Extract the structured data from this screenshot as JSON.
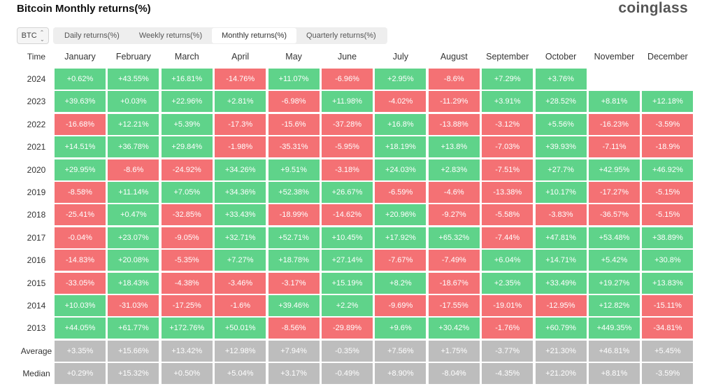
{
  "header": {
    "title": "Bitcoin Monthly returns(%)",
    "brand": "coinglass"
  },
  "controls": {
    "coin": "BTC",
    "tabs": [
      "Daily returns(%)",
      "Weekly returns(%)",
      "Monthly returns(%)",
      "Quarterly returns(%)"
    ],
    "active_tab": 2
  },
  "colors": {
    "positive": "#5fd38a",
    "negative": "#f47174",
    "summary": "#bdbdbd"
  },
  "chart_data": {
    "type": "table",
    "row_header": "Time",
    "columns": [
      "January",
      "February",
      "March",
      "April",
      "May",
      "June",
      "July",
      "August",
      "September",
      "October",
      "November",
      "December"
    ],
    "rows": [
      {
        "label": "2024",
        "values": [
          "+0.62%",
          "+43.55%",
          "+16.81%",
          "-14.76%",
          "+11.07%",
          "-6.96%",
          "+2.95%",
          "-8.6%",
          "+7.29%",
          "+3.76%",
          null,
          null
        ]
      },
      {
        "label": "2023",
        "values": [
          "+39.63%",
          "+0.03%",
          "+22.96%",
          "+2.81%",
          "-6.98%",
          "+11.98%",
          "-4.02%",
          "-11.29%",
          "+3.91%",
          "+28.52%",
          "+8.81%",
          "+12.18%"
        ]
      },
      {
        "label": "2022",
        "values": [
          "-16.68%",
          "+12.21%",
          "+5.39%",
          "-17.3%",
          "-15.6%",
          "-37.28%",
          "+16.8%",
          "-13.88%",
          "-3.12%",
          "+5.56%",
          "-16.23%",
          "-3.59%"
        ]
      },
      {
        "label": "2021",
        "values": [
          "+14.51%",
          "+36.78%",
          "+29.84%",
          "-1.98%",
          "-35.31%",
          "-5.95%",
          "+18.19%",
          "+13.8%",
          "-7.03%",
          "+39.93%",
          "-7.11%",
          "-18.9%"
        ]
      },
      {
        "label": "2020",
        "values": [
          "+29.95%",
          "-8.6%",
          "-24.92%",
          "+34.26%",
          "+9.51%",
          "-3.18%",
          "+24.03%",
          "+2.83%",
          "-7.51%",
          "+27.7%",
          "+42.95%",
          "+46.92%"
        ]
      },
      {
        "label": "2019",
        "values": [
          "-8.58%",
          "+11.14%",
          "+7.05%",
          "+34.36%",
          "+52.38%",
          "+26.67%",
          "-6.59%",
          "-4.6%",
          "-13.38%",
          "+10.17%",
          "-17.27%",
          "-5.15%"
        ]
      },
      {
        "label": "2018",
        "values": [
          "-25.41%",
          "+0.47%",
          "-32.85%",
          "+33.43%",
          "-18.99%",
          "-14.62%",
          "+20.96%",
          "-9.27%",
          "-5.58%",
          "-3.83%",
          "-36.57%",
          "-5.15%"
        ]
      },
      {
        "label": "2017",
        "values": [
          "-0.04%",
          "+23.07%",
          "-9.05%",
          "+32.71%",
          "+52.71%",
          "+10.45%",
          "+17.92%",
          "+65.32%",
          "-7.44%",
          "+47.81%",
          "+53.48%",
          "+38.89%"
        ]
      },
      {
        "label": "2016",
        "values": [
          "-14.83%",
          "+20.08%",
          "-5.35%",
          "+7.27%",
          "+18.78%",
          "+27.14%",
          "-7.67%",
          "-7.49%",
          "+6.04%",
          "+14.71%",
          "+5.42%",
          "+30.8%"
        ]
      },
      {
        "label": "2015",
        "values": [
          "-33.05%",
          "+18.43%",
          "-4.38%",
          "-3.46%",
          "-3.17%",
          "+15.19%",
          "+8.2%",
          "-18.67%",
          "+2.35%",
          "+33.49%",
          "+19.27%",
          "+13.83%"
        ]
      },
      {
        "label": "2014",
        "values": [
          "+10.03%",
          "-31.03%",
          "-17.25%",
          "-1.6%",
          "+39.46%",
          "+2.2%",
          "-9.69%",
          "-17.55%",
          "-19.01%",
          "-12.95%",
          "+12.82%",
          "-15.11%"
        ]
      },
      {
        "label": "2013",
        "values": [
          "+44.05%",
          "+61.77%",
          "+172.76%",
          "+50.01%",
          "-8.56%",
          "-29.89%",
          "+9.6%",
          "+30.42%",
          "-1.76%",
          "+60.79%",
          "+449.35%",
          "-34.81%"
        ]
      }
    ],
    "summary_rows": [
      {
        "label": "Average",
        "values": [
          "+3.35%",
          "+15.66%",
          "+13.42%",
          "+12.98%",
          "+7.94%",
          "-0.35%",
          "+7.56%",
          "+1.75%",
          "-3.77%",
          "+21.30%",
          "+46.81%",
          "+5.45%"
        ]
      },
      {
        "label": "Median",
        "values": [
          "+0.29%",
          "+15.32%",
          "+0.50%",
          "+5.04%",
          "+3.17%",
          "-0.49%",
          "+8.90%",
          "-8.04%",
          "-4.35%",
          "+21.20%",
          "+8.81%",
          "-3.59%"
        ]
      }
    ]
  }
}
